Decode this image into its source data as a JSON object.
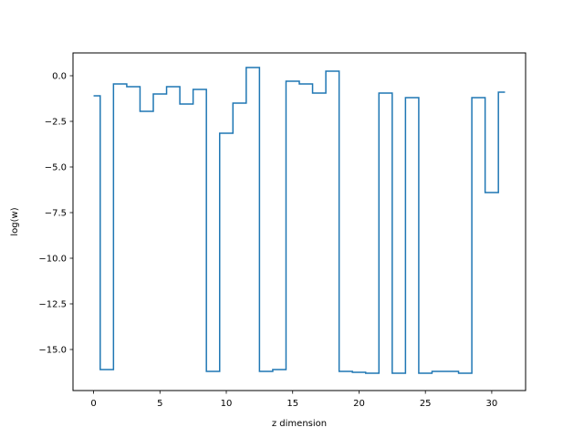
{
  "chart_data": {
    "type": "line",
    "drawstyle": "steps-mid",
    "title": "",
    "xlabel": "z dimension",
    "ylabel": "log(w)",
    "xlim": [
      -1.55,
      32.55
    ],
    "ylim": [
      -17.25,
      1.25
    ],
    "xticks": [
      0,
      5,
      10,
      15,
      20,
      25,
      30
    ],
    "xtick_labels": [
      "0",
      "5",
      "10",
      "15",
      "20",
      "25",
      "30"
    ],
    "yticks": [
      0.0,
      -2.5,
      -5.0,
      -7.5,
      -10.0,
      -12.5,
      -15.0
    ],
    "ytick_labels": [
      "0.0",
      "−2.5",
      "−5.0",
      "−7.5",
      "−10.0",
      "−12.5",
      "−15.0"
    ],
    "grid": false,
    "legend": false,
    "series": [
      {
        "color": "#1f77b4",
        "x": [
          0,
          1,
          2,
          3,
          4,
          5,
          6,
          7,
          8,
          9,
          10,
          11,
          12,
          13,
          14,
          15,
          16,
          17,
          18,
          19,
          20,
          21,
          22,
          23,
          24,
          25,
          26,
          27,
          28,
          29,
          30,
          31
        ],
        "values": [
          -1.1,
          -16.1,
          -0.45,
          -0.6,
          -1.95,
          -1.0,
          -0.6,
          -1.55,
          -0.75,
          -16.2,
          -3.15,
          -1.5,
          0.45,
          -16.2,
          -16.1,
          -0.3,
          -0.45,
          -0.95,
          0.25,
          -16.2,
          -16.25,
          -16.3,
          -0.95,
          -16.3,
          -1.2,
          -16.3,
          -16.2,
          -16.2,
          -16.3,
          -1.2,
          -6.4,
          -0.9
        ]
      }
    ]
  }
}
